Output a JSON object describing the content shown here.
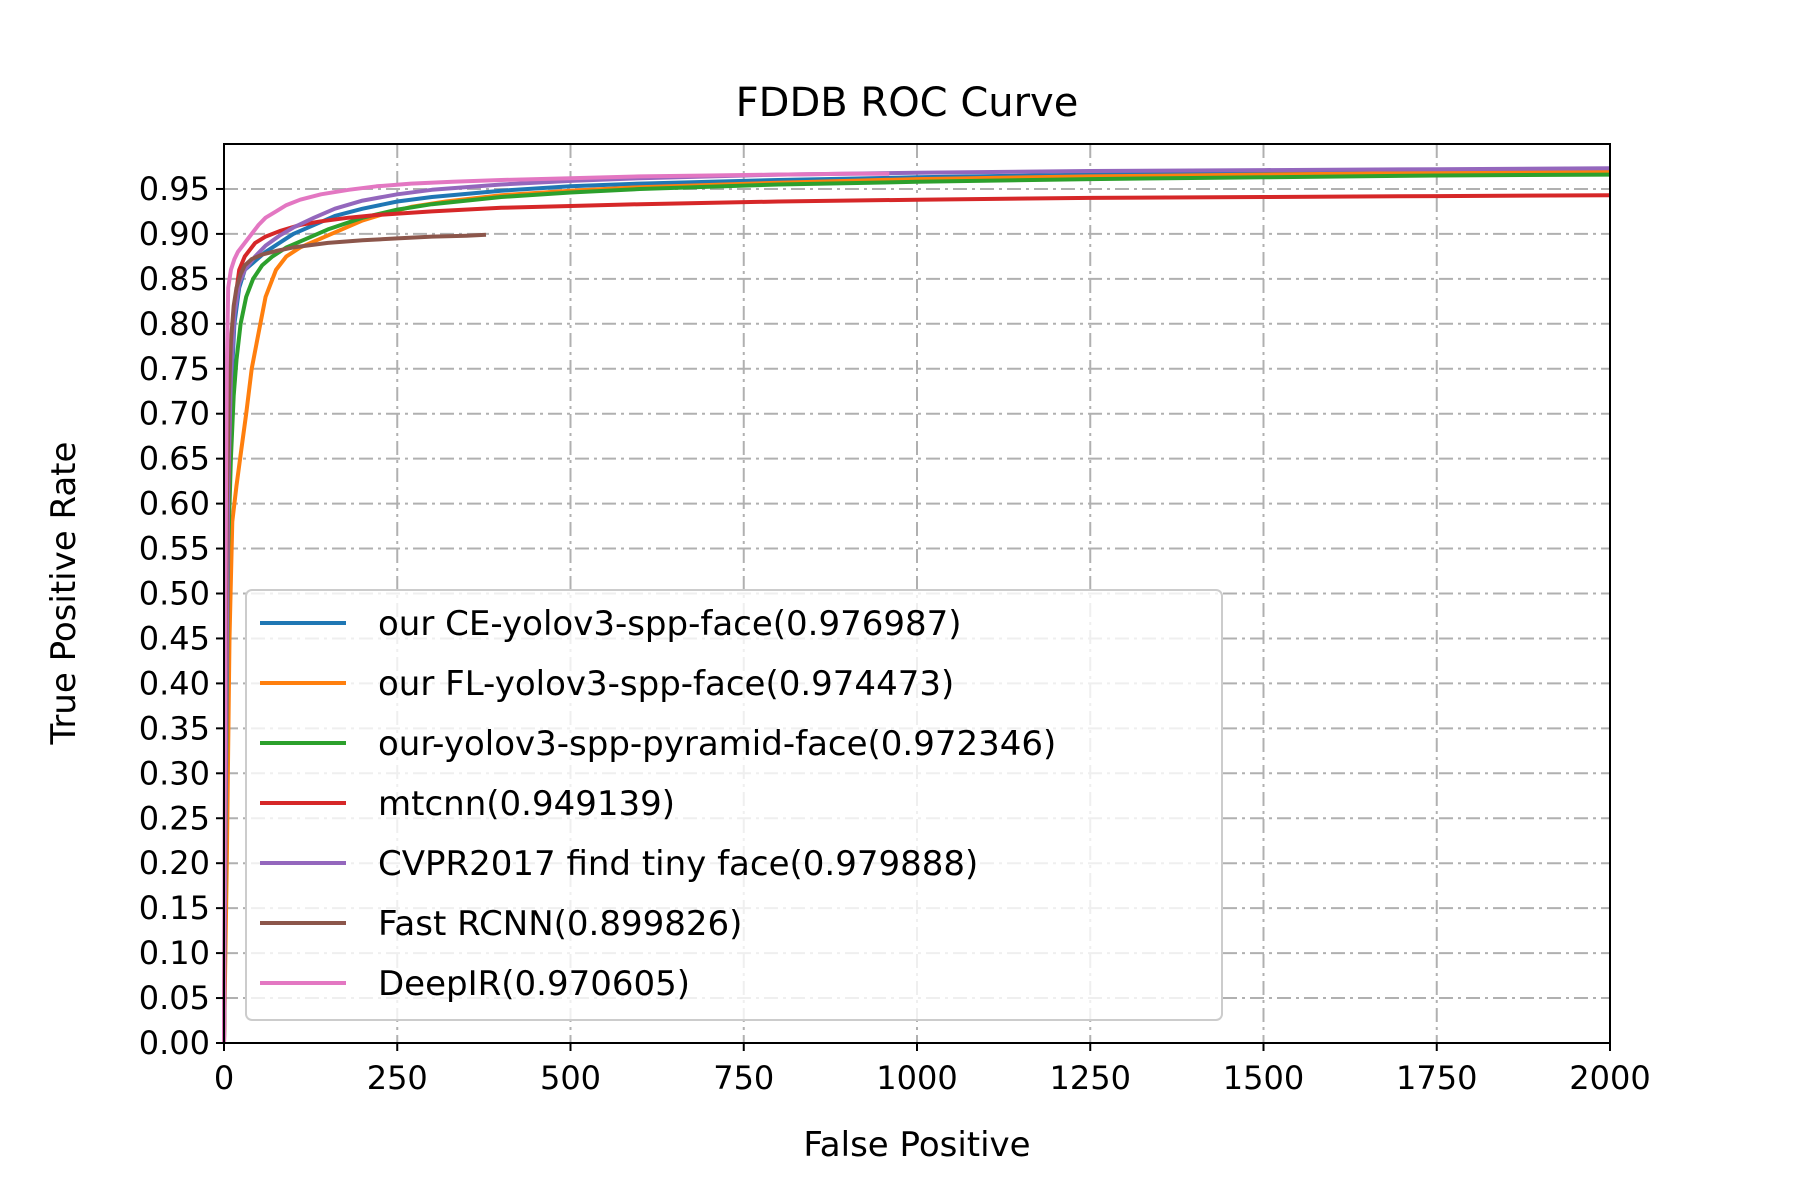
{
  "chart_data": {
    "type": "line",
    "title": "FDDB ROC Curve",
    "xlabel": "False Positive",
    "ylabel": "True Positive Rate",
    "xlim": [
      0,
      2000
    ],
    "ylim": [
      0,
      1.0
    ],
    "xticks": [
      "0",
      "250",
      "500",
      "750",
      "1000",
      "1250",
      "1500",
      "1750",
      "2000"
    ],
    "yticks": [
      "0.00",
      "0.05",
      "0.10",
      "0.15",
      "0.20",
      "0.25",
      "0.30",
      "0.35",
      "0.40",
      "0.45",
      "0.50",
      "0.55",
      "0.60",
      "0.65",
      "0.70",
      "0.75",
      "0.80",
      "0.85",
      "0.90",
      "0.95"
    ],
    "grid": true,
    "legend_position": "lower-left",
    "series": [
      {
        "name": "our CE-yolov3-spp-face(0.976987)",
        "color": "#1f77b4",
        "points": [
          [
            0,
            0
          ],
          [
            3,
            0.3
          ],
          [
            6,
            0.6
          ],
          [
            10,
            0.72
          ],
          [
            15,
            0.8
          ],
          [
            22,
            0.84
          ],
          [
            30,
            0.86
          ],
          [
            45,
            0.87
          ],
          [
            60,
            0.88
          ],
          [
            80,
            0.89
          ],
          [
            100,
            0.9
          ],
          [
            130,
            0.91
          ],
          [
            160,
            0.92
          ],
          [
            200,
            0.928
          ],
          [
            250,
            0.936
          ],
          [
            300,
            0.941
          ],
          [
            400,
            0.948
          ],
          [
            500,
            0.953
          ],
          [
            600,
            0.956
          ],
          [
            800,
            0.96
          ],
          [
            1000,
            0.963
          ],
          [
            1250,
            0.966
          ],
          [
            1500,
            0.968
          ],
          [
            1750,
            0.97
          ],
          [
            2000,
            0.971
          ]
        ]
      },
      {
        "name": "our FL-yolov3-spp-face(0.974473)",
        "color": "#ff7f0e",
        "points": [
          [
            0,
            0
          ],
          [
            4,
            0.2
          ],
          [
            8,
            0.45
          ],
          [
            12,
            0.58
          ],
          [
            18,
            0.62
          ],
          [
            25,
            0.66
          ],
          [
            32,
            0.7
          ],
          [
            40,
            0.75
          ],
          [
            50,
            0.79
          ],
          [
            60,
            0.83
          ],
          [
            75,
            0.86
          ],
          [
            90,
            0.875
          ],
          [
            110,
            0.885
          ],
          [
            140,
            0.895
          ],
          [
            170,
            0.905
          ],
          [
            200,
            0.915
          ],
          [
            230,
            0.922
          ],
          [
            270,
            0.93
          ],
          [
            320,
            0.936
          ],
          [
            400,
            0.943
          ],
          [
            500,
            0.948
          ],
          [
            600,
            0.952
          ],
          [
            800,
            0.957
          ],
          [
            1000,
            0.961
          ],
          [
            1250,
            0.964
          ],
          [
            1500,
            0.966
          ],
          [
            1750,
            0.968
          ],
          [
            2000,
            0.969
          ]
        ]
      },
      {
        "name": "our-yolov3-spp-pyramid-face(0.972346)",
        "color": "#2ca02c",
        "points": [
          [
            0,
            0
          ],
          [
            3,
            0.3
          ],
          [
            6,
            0.55
          ],
          [
            10,
            0.65
          ],
          [
            14,
            0.72
          ],
          [
            18,
            0.76
          ],
          [
            24,
            0.8
          ],
          [
            32,
            0.83
          ],
          [
            42,
            0.85
          ],
          [
            55,
            0.865
          ],
          [
            70,
            0.875
          ],
          [
            90,
            0.885
          ],
          [
            120,
            0.895
          ],
          [
            150,
            0.905
          ],
          [
            200,
            0.918
          ],
          [
            250,
            0.927
          ],
          [
            300,
            0.933
          ],
          [
            400,
            0.941
          ],
          [
            500,
            0.946
          ],
          [
            600,
            0.95
          ],
          [
            800,
            0.955
          ],
          [
            1000,
            0.958
          ],
          [
            1250,
            0.961
          ],
          [
            1500,
            0.963
          ],
          [
            1750,
            0.965
          ],
          [
            2000,
            0.966
          ]
        ]
      },
      {
        "name": "mtcnn(0.949139)",
        "color": "#d62728",
        "points": [
          [
            0,
            0
          ],
          [
            3,
            0.35
          ],
          [
            6,
            0.6
          ],
          [
            10,
            0.75
          ],
          [
            15,
            0.82
          ],
          [
            22,
            0.86
          ],
          [
            30,
            0.875
          ],
          [
            45,
            0.89
          ],
          [
            60,
            0.897
          ],
          [
            80,
            0.903
          ],
          [
            110,
            0.91
          ],
          [
            140,
            0.914
          ],
          [
            180,
            0.918
          ],
          [
            220,
            0.921
          ],
          [
            300,
            0.925
          ],
          [
            400,
            0.929
          ],
          [
            500,
            0.931
          ],
          [
            600,
            0.933
          ],
          [
            800,
            0.936
          ],
          [
            1000,
            0.938
          ],
          [
            1250,
            0.94
          ],
          [
            1500,
            0.941
          ],
          [
            1750,
            0.942
          ],
          [
            2000,
            0.943
          ]
        ]
      },
      {
        "name": "CVPR2017 find tiny face(0.979888)",
        "color": "#9467bd",
        "points": [
          [
            0,
            0
          ],
          [
            3,
            0.35
          ],
          [
            6,
            0.62
          ],
          [
            10,
            0.74
          ],
          [
            15,
            0.81
          ],
          [
            22,
            0.845
          ],
          [
            30,
            0.86
          ],
          [
            45,
            0.875
          ],
          [
            60,
            0.887
          ],
          [
            80,
            0.898
          ],
          [
            100,
            0.907
          ],
          [
            130,
            0.918
          ],
          [
            160,
            0.928
          ],
          [
            200,
            0.937
          ],
          [
            250,
            0.944
          ],
          [
            300,
            0.949
          ],
          [
            400,
            0.955
          ],
          [
            500,
            0.959
          ],
          [
            600,
            0.962
          ],
          [
            800,
            0.966
          ],
          [
            1000,
            0.968
          ],
          [
            1250,
            0.97
          ],
          [
            1500,
            0.971
          ],
          [
            1750,
            0.972
          ],
          [
            2000,
            0.973
          ]
        ]
      },
      {
        "name": "Fast RCNN(0.899826)",
        "color": "#8c564b",
        "points": [
          [
            0,
            0
          ],
          [
            2,
            0.4
          ],
          [
            4,
            0.6
          ],
          [
            7,
            0.72
          ],
          [
            10,
            0.78
          ],
          [
            14,
            0.82
          ],
          [
            18,
            0.84
          ],
          [
            24,
            0.855
          ],
          [
            30,
            0.865
          ],
          [
            40,
            0.872
          ],
          [
            55,
            0.877
          ],
          [
            75,
            0.881
          ],
          [
            100,
            0.885
          ],
          [
            150,
            0.89
          ],
          [
            200,
            0.893
          ],
          [
            250,
            0.895
          ],
          [
            300,
            0.897
          ],
          [
            350,
            0.898
          ],
          [
            378,
            0.899
          ]
        ]
      },
      {
        "name": "DeepIR(0.970605)",
        "color": "#e377c2",
        "points": [
          [
            0,
            0
          ],
          [
            2,
            0.5
          ],
          [
            4,
            0.75
          ],
          [
            6,
            0.84
          ],
          [
            10,
            0.86
          ],
          [
            15,
            0.872
          ],
          [
            20,
            0.88
          ],
          [
            30,
            0.89
          ],
          [
            40,
            0.9
          ],
          [
            50,
            0.91
          ],
          [
            60,
            0.918
          ],
          [
            75,
            0.925
          ],
          [
            90,
            0.932
          ],
          [
            110,
            0.938
          ],
          [
            140,
            0.944
          ],
          [
            180,
            0.949
          ],
          [
            220,
            0.953
          ],
          [
            270,
            0.956
          ],
          [
            330,
            0.958
          ],
          [
            400,
            0.96
          ],
          [
            500,
            0.962
          ],
          [
            600,
            0.964
          ],
          [
            700,
            0.965
          ],
          [
            800,
            0.966
          ],
          [
            900,
            0.967
          ],
          [
            960,
            0.967
          ]
        ]
      }
    ]
  }
}
